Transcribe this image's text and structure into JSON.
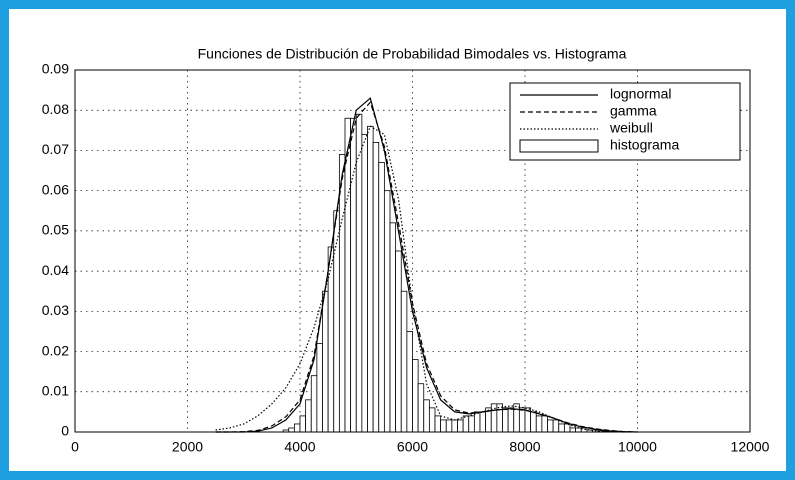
{
  "chart_data": {
    "type": "histogram",
    "title": "Funciones de Distribución de Probabilidad Bimodales vs. Histograma",
    "xlim": [
      0,
      12000
    ],
    "xticks": [
      0,
      2000,
      4000,
      6000,
      8000,
      10000,
      12000
    ],
    "ylim": [
      0,
      0.09
    ],
    "yticks": [
      0,
      0.01,
      0.02,
      0.03,
      0.04,
      0.05,
      0.06,
      0.07,
      0.08,
      0.09
    ],
    "grid": true,
    "legend": "upper right",
    "x": [
      2500,
      2750,
      3000,
      3250,
      3500,
      3750,
      4000,
      4250,
      4500,
      4750,
      5000,
      5250,
      5500,
      5750,
      6000,
      6250,
      6500,
      6750,
      7000,
      7250,
      7500,
      7750,
      8000,
      8250,
      8500,
      8750,
      9000,
      9250,
      9500,
      9750,
      10000
    ],
    "series": [
      {
        "name": "lognormal",
        "color": "#000000",
        "linestyle": "solid",
        "values": [
          0,
          0,
          0,
          0.0002,
          0.001,
          0.003,
          0.007,
          0.018,
          0.04,
          0.064,
          0.08,
          0.083,
          0.07,
          0.05,
          0.03,
          0.016,
          0.008,
          0.005,
          0.0045,
          0.005,
          0.0055,
          0.0058,
          0.0055,
          0.0045,
          0.0035,
          0.0022,
          0.0013,
          0.0007,
          0.0003,
          0.0001,
          0
        ]
      },
      {
        "name": "gamma",
        "color": "#000000",
        "linestyle": "dashed",
        "values": [
          0,
          0,
          0.0001,
          0.0004,
          0.0015,
          0.0038,
          0.008,
          0.019,
          0.04,
          0.063,
          0.078,
          0.082,
          0.071,
          0.052,
          0.032,
          0.017,
          0.009,
          0.0055,
          0.0047,
          0.005,
          0.0055,
          0.0057,
          0.0054,
          0.0046,
          0.0035,
          0.0023,
          0.0014,
          0.0008,
          0.0004,
          0.0001,
          0
        ]
      },
      {
        "name": "weibull",
        "color": "#000000",
        "linestyle": "dotted",
        "values": [
          0.0005,
          0.001,
          0.002,
          0.004,
          0.007,
          0.011,
          0.017,
          0.026,
          0.038,
          0.053,
          0.067,
          0.076,
          0.074,
          0.058,
          0.032,
          0.012,
          0.004,
          0.003,
          0.004,
          0.005,
          0.006,
          0.0065,
          0.006,
          0.005,
          0.0035,
          0.002,
          0.0008,
          0.0003,
          0.0001,
          0,
          0
        ]
      }
    ],
    "histogram": {
      "name": "histograma",
      "color": "#ffffff",
      "edgecolor": "#000000",
      "bins": [
        3700,
        3800,
        3900,
        4000,
        4100,
        4200,
        4300,
        4400,
        4500,
        4600,
        4700,
        4800,
        4900,
        5000,
        5100,
        5200,
        5300,
        5400,
        5500,
        5600,
        5700,
        5800,
        5900,
        6000,
        6100,
        6200,
        6300,
        6400,
        6500,
        6600,
        6700,
        6800,
        6900,
        7000,
        7100,
        7200,
        7300,
        7400,
        7500,
        7600,
        7700,
        7800,
        7900,
        8000,
        8100,
        8200,
        8300,
        8400,
        8500,
        8600,
        8700,
        8800,
        8900,
        9000,
        9100,
        9200,
        9300,
        9400,
        9500,
        9600
      ],
      "counts": [
        0.0005,
        0.001,
        0.002,
        0.004,
        0.008,
        0.014,
        0.022,
        0.035,
        0.046,
        0.055,
        0.069,
        0.078,
        0.078,
        0.079,
        0.074,
        0.076,
        0.072,
        0.067,
        0.06,
        0.052,
        0.045,
        0.035,
        0.025,
        0.018,
        0.012,
        0.008,
        0.006,
        0.004,
        0.003,
        0.003,
        0.003,
        0.003,
        0.004,
        0.004,
        0.005,
        0.005,
        0.006,
        0.007,
        0.007,
        0.006,
        0.006,
        0.007,
        0.006,
        0.006,
        0.005,
        0.004,
        0.004,
        0.003,
        0.003,
        0.002,
        0.002,
        0.001,
        0.001,
        0.001,
        0.0005,
        0.0005,
        0.0003,
        0.0002,
        0.0001
      ]
    }
  }
}
